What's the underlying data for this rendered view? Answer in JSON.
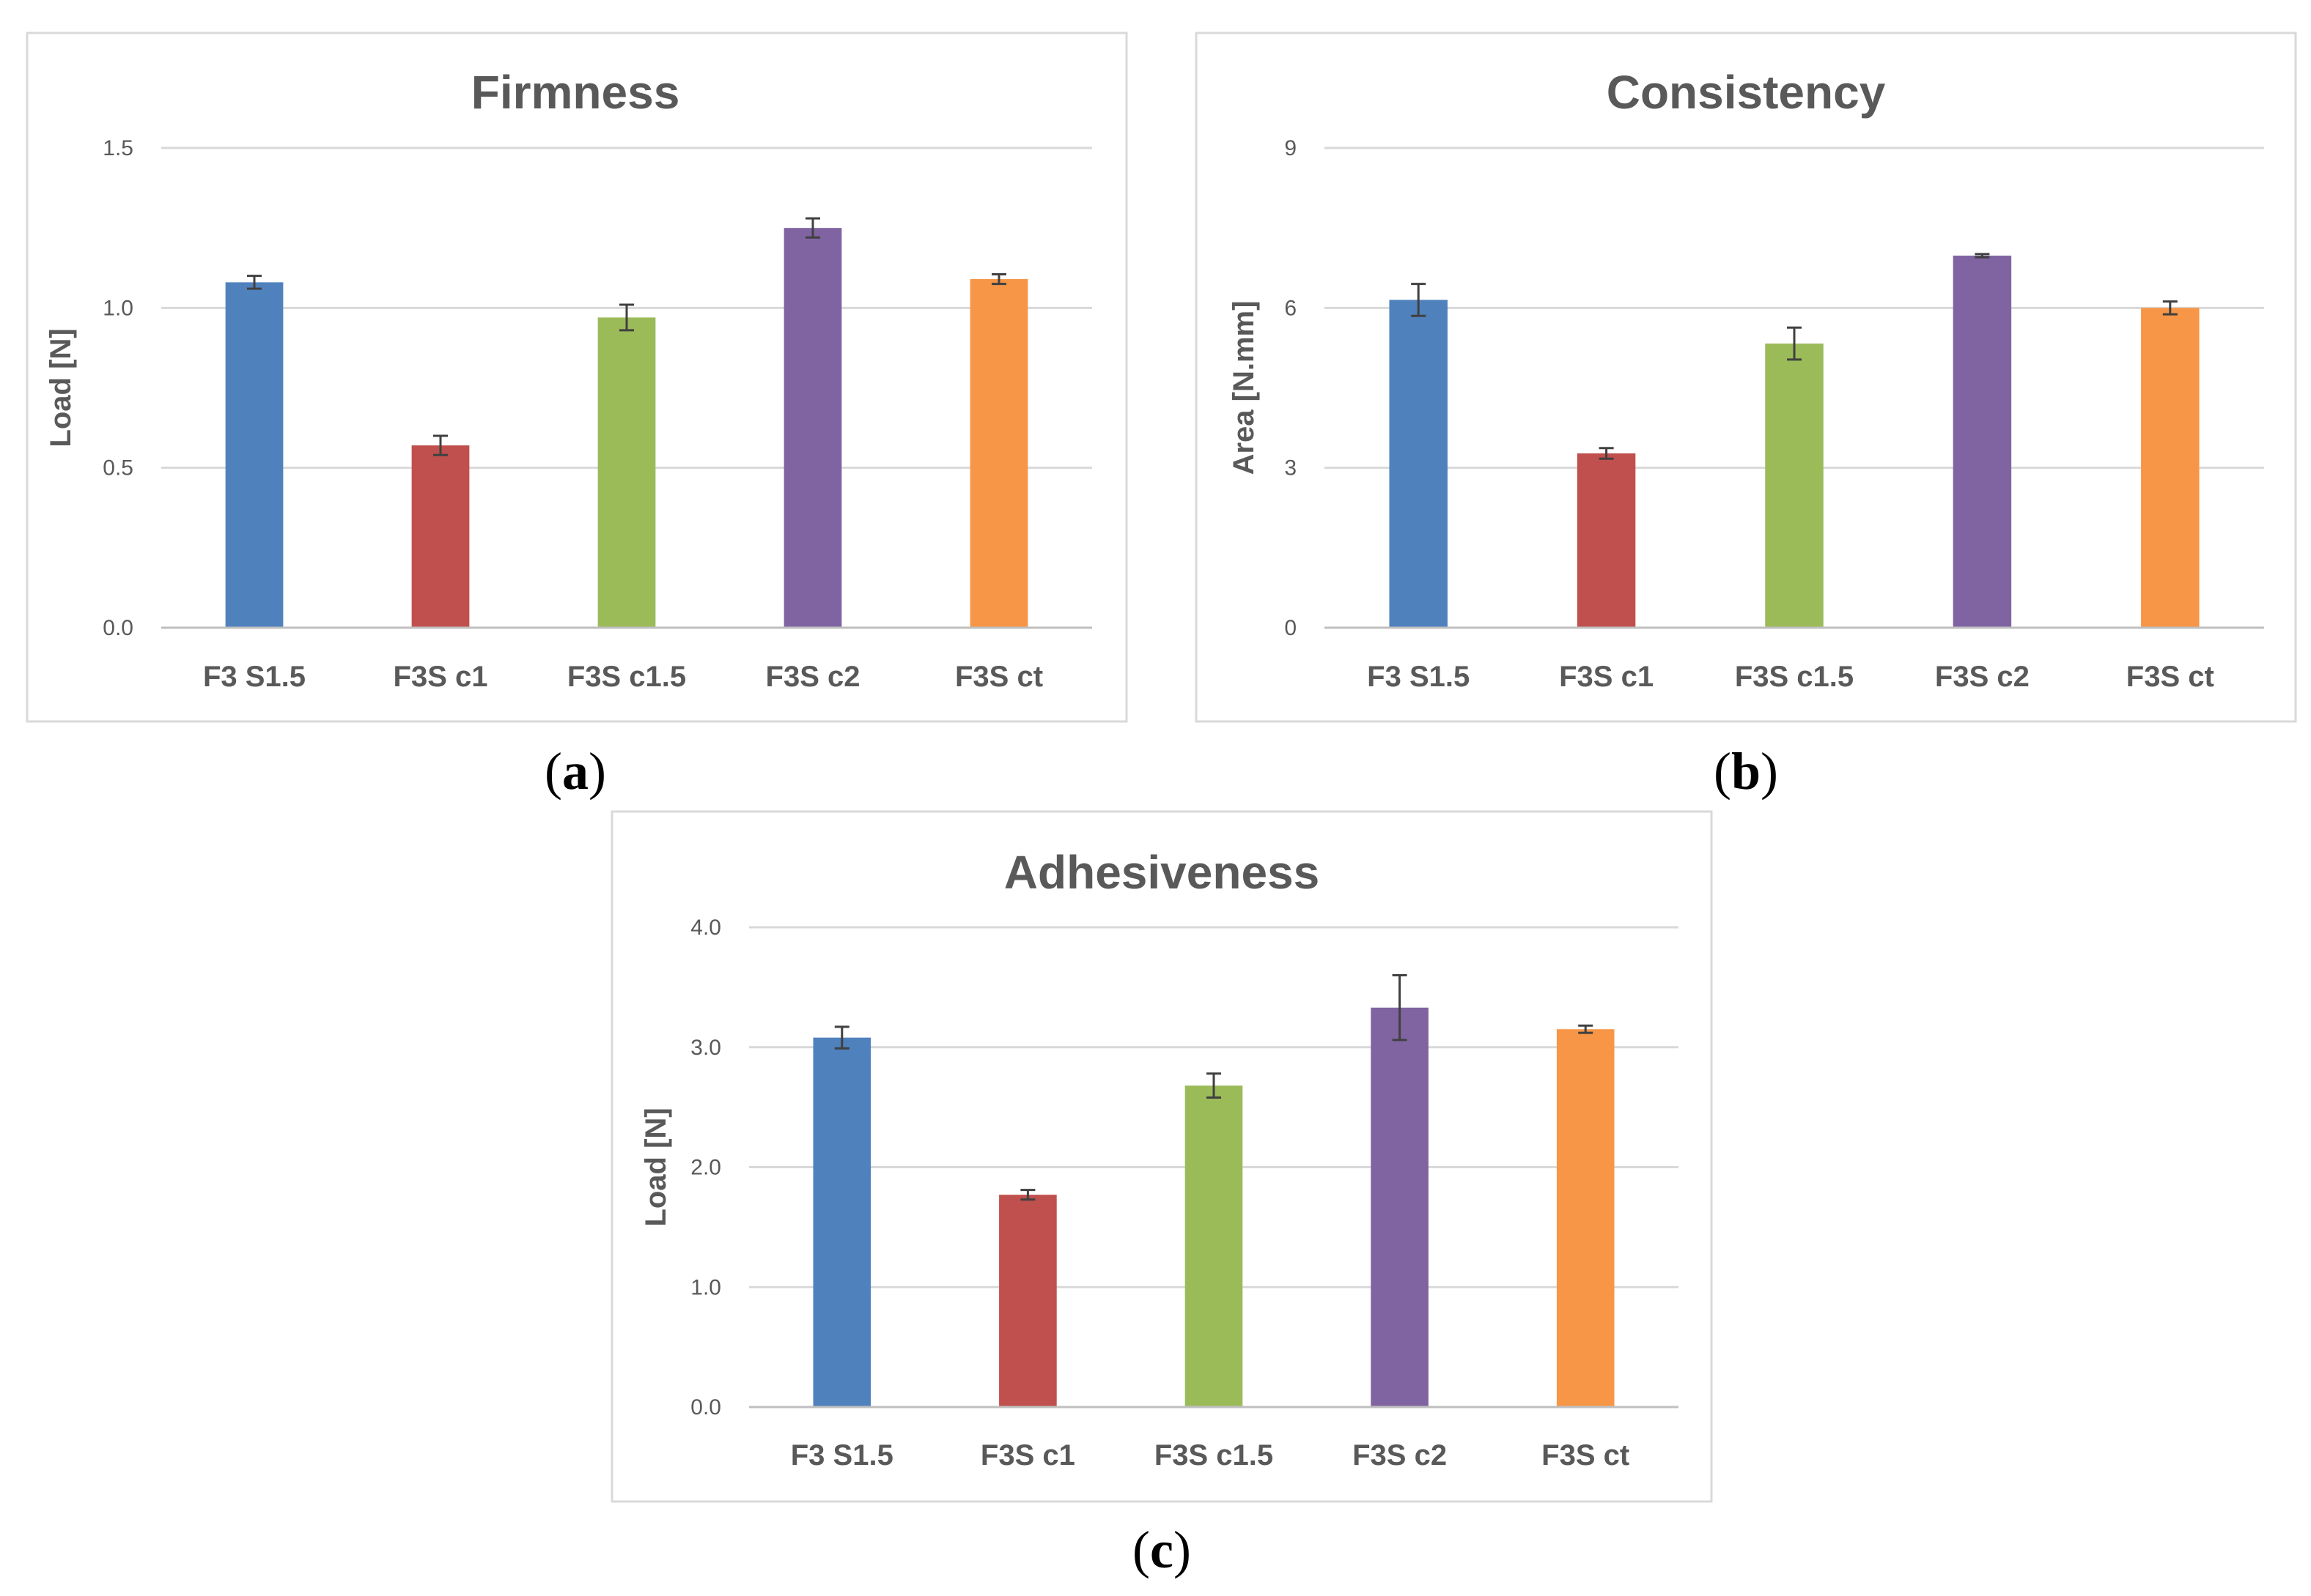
{
  "figure": {
    "colors": [
      "#4f81bd",
      "#c0504d",
      "#9bbb59",
      "#8064a2",
      "#f79646"
    ]
  },
  "chart_data": [
    {
      "id": "a",
      "panel_label": "a",
      "type": "bar",
      "title": "Firmness",
      "xlabel": "",
      "ylabel": "Load [N]",
      "categories": [
        "F3 S1.5",
        "F3S c1",
        "F3S c1.5",
        "F3S c2",
        "F3S ct"
      ],
      "values": [
        1.08,
        0.57,
        0.97,
        1.25,
        1.09
      ],
      "errors": [
        0.02,
        0.03,
        0.04,
        0.03,
        0.015
      ],
      "ylim": [
        0,
        1.5
      ],
      "yticks": [
        0,
        0.5,
        1.0,
        1.5
      ],
      "ytick_labels": [
        "0.0",
        "0.5",
        "1.0",
        "1.5"
      ],
      "grid": true,
      "legend": "none"
    },
    {
      "id": "b",
      "panel_label": "b",
      "type": "bar",
      "title": "Consistency",
      "xlabel": "",
      "ylabel": "Area [N.mm]",
      "categories": [
        "F3 S1.5",
        "F3S c1",
        "F3S c1.5",
        "F3S c2",
        "F3S ct"
      ],
      "values": [
        6.15,
        3.27,
        5.33,
        6.98,
        6.0
      ],
      "errors": [
        0.3,
        0.1,
        0.3,
        0.03,
        0.12
      ],
      "ylim": [
        0,
        9
      ],
      "yticks": [
        0,
        3,
        6,
        9
      ],
      "ytick_labels": [
        "0",
        "3",
        "6",
        "9"
      ],
      "grid": true,
      "legend": "none"
    },
    {
      "id": "c",
      "panel_label": "c",
      "type": "bar",
      "title": "Adhesiveness",
      "xlabel": "",
      "ylabel": "Load [N]",
      "categories": [
        "F3 S1.5",
        "F3S c1",
        "F3S c1.5",
        "F3S c2",
        "F3S ct"
      ],
      "values": [
        3.08,
        1.77,
        2.68,
        3.33,
        3.15
      ],
      "errors": [
        0.09,
        0.04,
        0.1,
        0.27,
        0.03
      ],
      "ylim": [
        0,
        4
      ],
      "yticks": [
        0,
        1,
        2,
        3,
        4
      ],
      "ytick_labels": [
        "0.0",
        "1.0",
        "2.0",
        "3.0",
        "4.0"
      ],
      "grid": true,
      "legend": "none"
    }
  ]
}
